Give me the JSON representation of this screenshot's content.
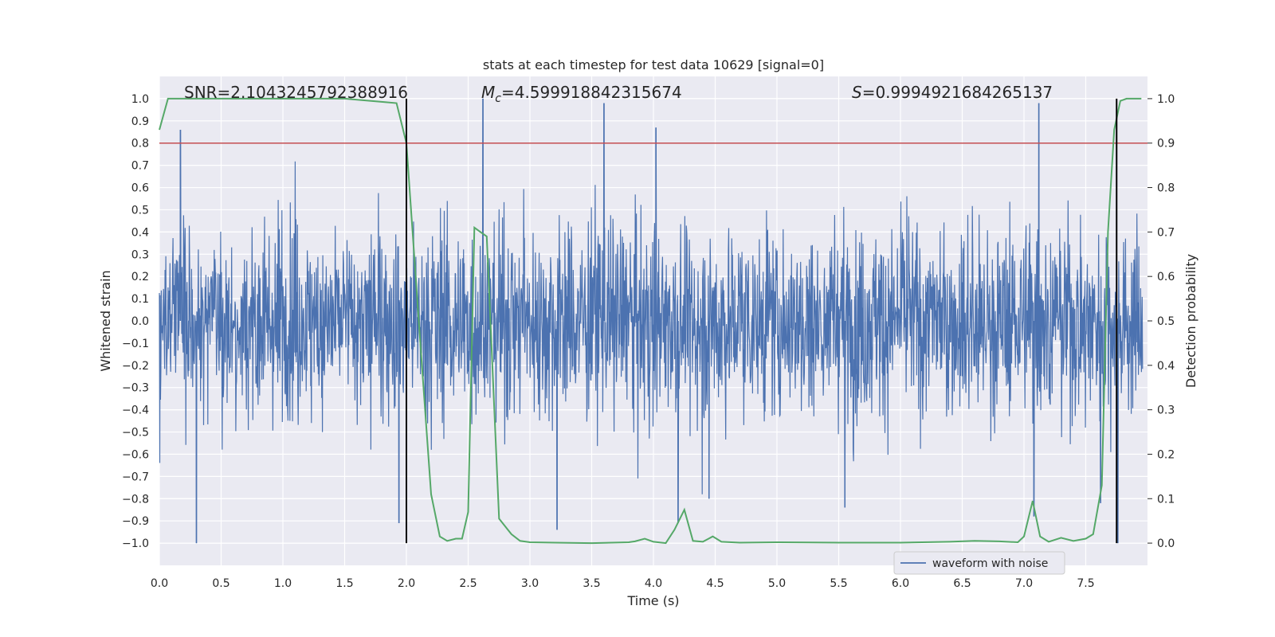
{
  "chart_data": {
    "type": "line",
    "title": "stats at each timestep for test data 10629 [signal=0]",
    "xlabel": "Time (s)",
    "ylabel_left": "Whitened strain",
    "ylabel_right": "Detection probability",
    "xlim": [
      0.0,
      8.0
    ],
    "ylim_left": [
      -1.1,
      1.1
    ],
    "ylim_right": [
      -0.05,
      1.05
    ],
    "x_ticks": [
      "0.0",
      "0.5",
      "1.0",
      "1.5",
      "2.0",
      "2.5",
      "3.0",
      "3.5",
      "4.0",
      "4.5",
      "5.0",
      "5.5",
      "6.0",
      "6.5",
      "7.0",
      "7.5"
    ],
    "y_ticks_left": [
      "−1.0",
      "−0.9",
      "−0.8",
      "−0.7",
      "−0.6",
      "−0.5",
      "−0.4",
      "−0.3",
      "−0.2",
      "−0.1",
      "0.0",
      "0.1",
      "0.2",
      "0.3",
      "0.4",
      "0.5",
      "0.6",
      "0.7",
      "0.8",
      "0.9",
      "1.0"
    ],
    "y_ticks_right": [
      "0.0",
      "0.1",
      "0.2",
      "0.3",
      "0.4",
      "0.5",
      "0.6",
      "0.7",
      "0.8",
      "0.9",
      "1.0"
    ],
    "grid": true,
    "legend_position": "lower-right",
    "annotations": {
      "snr": "SNR=2.1043245792388916",
      "mc_symbol": "M",
      "mc_sub": "c",
      "mc_value": "=4.599918842315674",
      "s_symbol": "S",
      "s_value": "=0.9994921684265137"
    },
    "threshold_line": {
      "axis": "right",
      "value": 0.9,
      "color": "#c44e52"
    },
    "vertical_markers": {
      "x": [
        2.0,
        7.75
      ],
      "color": "#000000"
    },
    "series": [
      {
        "name": "waveform with noise",
        "axis": "left",
        "color": "#4c72b0",
        "description_values": "dense whitened noise, mostly within ±0.6 with spikes reaching about ±1.0",
        "peak_points": [
          {
            "x": 0.17,
            "y": 0.86
          },
          {
            "x": 0.3,
            "y": -1.0
          },
          {
            "x": 1.94,
            "y": -0.91
          },
          {
            "x": 2.62,
            "y": 1.0
          },
          {
            "x": 3.22,
            "y": -0.94
          },
          {
            "x": 3.6,
            "y": 0.98
          },
          {
            "x": 4.02,
            "y": 0.87
          },
          {
            "x": 4.2,
            "y": -0.91
          },
          {
            "x": 4.45,
            "y": -0.8
          },
          {
            "x": 5.55,
            "y": -0.84
          },
          {
            "x": 7.08,
            "y": -0.88
          },
          {
            "x": 7.12,
            "y": 0.98
          },
          {
            "x": 7.62,
            "y": -0.82
          },
          {
            "x": 7.76,
            "y": -1.0
          }
        ]
      },
      {
        "name": "",
        "axis": "right",
        "color": "#55a868",
        "x": [
          0.0,
          0.07,
          0.15,
          0.5,
          1.0,
          1.5,
          1.92,
          2.0,
          2.1,
          2.2,
          2.27,
          2.33,
          2.4,
          2.45,
          2.5,
          2.55,
          2.6,
          2.65,
          2.75,
          2.85,
          2.92,
          3.0,
          3.2,
          3.5,
          3.8,
          3.85,
          3.93,
          4.0,
          4.1,
          4.17,
          4.25,
          4.32,
          4.4,
          4.48,
          4.55,
          4.7,
          5.0,
          5.5,
          6.0,
          6.4,
          6.6,
          6.8,
          6.95,
          7.0,
          7.07,
          7.13,
          7.2,
          7.3,
          7.4,
          7.5,
          7.56,
          7.63,
          7.68,
          7.73,
          7.78,
          7.83,
          7.9,
          7.95
        ],
        "y": [
          0.93,
          1.0,
          1.0,
          1.0,
          1.0,
          1.0,
          0.99,
          0.9,
          0.5,
          0.11,
          0.015,
          0.005,
          0.01,
          0.01,
          0.07,
          0.71,
          0.7,
          0.69,
          0.055,
          0.02,
          0.005,
          0.002,
          0.001,
          0.0,
          0.002,
          0.004,
          0.01,
          0.003,
          0.0,
          0.03,
          0.075,
          0.005,
          0.003,
          0.015,
          0.003,
          0.001,
          0.002,
          0.001,
          0.001,
          0.003,
          0.005,
          0.004,
          0.002,
          0.015,
          0.095,
          0.015,
          0.003,
          0.012,
          0.005,
          0.01,
          0.02,
          0.13,
          0.7,
          0.93,
          0.995,
          1.0,
          1.0,
          1.0
        ]
      }
    ]
  }
}
